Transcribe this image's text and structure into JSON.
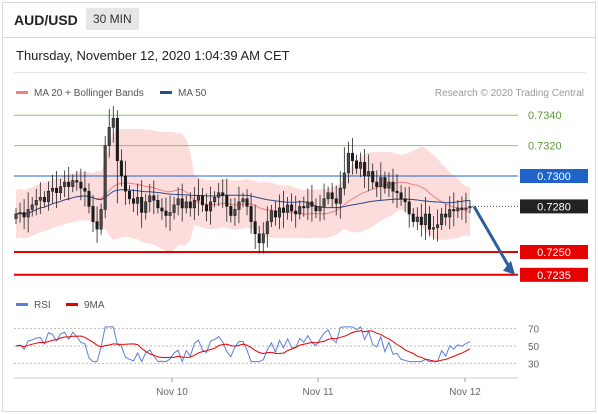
{
  "header": {
    "symbol": "AUD/USD",
    "timeframe": "30 MIN"
  },
  "timestamp": "Thursday, November 12, 2020 1:04:39 AM CET",
  "credit": "Research © 2020 Trading Central",
  "colors": {
    "bullish": "#2b2b2b",
    "ma20": "#f08080",
    "ma50": "#2c4a8a",
    "band_fill": "#fcd3d3",
    "resistance_green": "#8dc26f",
    "pivot_blue": "#1f63c9",
    "support_red": "#e60000",
    "current_price_bg": "#222222",
    "rsi": "#5b7fd6",
    "rsi_ma": "#e60000",
    "arrow": "#2c5f9c"
  },
  "chart_data": [
    {
      "type": "candlestick",
      "name": "price",
      "legend": [
        {
          "label": "MA 20 + Bollinger Bands",
          "color": "#f08080"
        },
        {
          "label": "MA 50",
          "color": "#2c4a8a"
        }
      ],
      "x_labels": [
        "Nov 10",
        "Nov 11",
        "Nov 12"
      ],
      "ylim": [
        0.7225,
        0.735
      ],
      "levels": [
        {
          "value": 0.734,
          "label": "0.7340",
          "kind": "resistance",
          "color": "#8dc26f"
        },
        {
          "value": 0.732,
          "label": "0.7320",
          "kind": "resistance",
          "color": "#8dc26f"
        },
        {
          "value": 0.73,
          "label": "0.7300",
          "kind": "pivot",
          "color": "#1f63c9"
        },
        {
          "value": 0.728,
          "label": "0.7280",
          "kind": "current",
          "color": "#222222"
        },
        {
          "value": 0.725,
          "label": "0.7250",
          "kind": "support",
          "color": "#e60000"
        },
        {
          "value": 0.7235,
          "label": "0.7235",
          "kind": "support",
          "color": "#e60000"
        }
      ],
      "closes": [
        0.7275,
        0.7276,
        0.7273,
        0.7278,
        0.7281,
        0.7284,
        0.7286,
        0.7283,
        0.729,
        0.7292,
        0.7289,
        0.7293,
        0.7296,
        0.7293,
        0.7297,
        0.7296,
        0.7292,
        0.729,
        0.728,
        0.727,
        0.7265,
        0.7278,
        0.732,
        0.7332,
        0.7338,
        0.731,
        0.73,
        0.729,
        0.7285,
        0.7282,
        0.7286,
        0.7276,
        0.7283,
        0.7287,
        0.7284,
        0.7279,
        0.7277,
        0.7274,
        0.7276,
        0.7281,
        0.7285,
        0.7279,
        0.7283,
        0.7279,
        0.7284,
        0.7287,
        0.7281,
        0.7277,
        0.7283,
        0.7286,
        0.7289,
        0.7287,
        0.728,
        0.7274,
        0.7278,
        0.7283,
        0.7285,
        0.728,
        0.727,
        0.7262,
        0.7256,
        0.7262,
        0.727,
        0.7277,
        0.7273,
        0.7279,
        0.7276,
        0.7281,
        0.7277,
        0.7275,
        0.728,
        0.7279,
        0.7283,
        0.728,
        0.7277,
        0.728,
        0.7285,
        0.7289,
        0.7285,
        0.7282,
        0.7292,
        0.7302,
        0.7315,
        0.731,
        0.7305,
        0.7309,
        0.73,
        0.7303,
        0.7296,
        0.7293,
        0.7299,
        0.7292,
        0.7296,
        0.729,
        0.7289,
        0.7285,
        0.7283,
        0.7275,
        0.727,
        0.7273,
        0.7268,
        0.7275,
        0.7265,
        0.7266,
        0.7268,
        0.7275,
        0.7273,
        0.7278,
        0.7277,
        0.7279,
        0.7278,
        0.7279,
        0.728
      ]
    },
    {
      "type": "line",
      "name": "rsi",
      "legend": [
        {
          "label": "RSI",
          "color": "#5b7fd6"
        },
        {
          "label": "9MA",
          "color": "#e60000"
        }
      ],
      "ylim": [
        20,
        80
      ],
      "ticks": [
        70,
        50,
        30
      ],
      "reference_lines": [
        70,
        50,
        30
      ]
    }
  ]
}
